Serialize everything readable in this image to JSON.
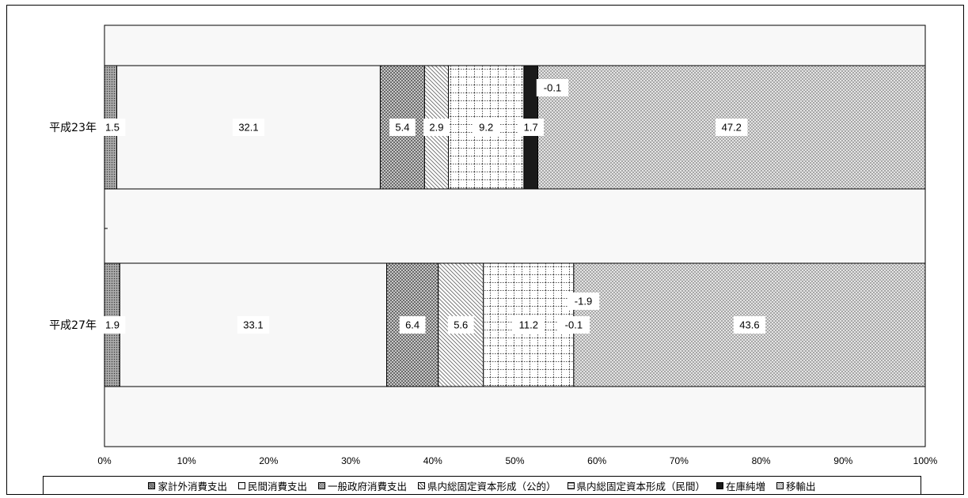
{
  "chart_data": {
    "type": "bar",
    "orientation": "horizontal",
    "stacking": "percent",
    "categories": [
      "平成23年",
      "平成27年"
    ],
    "series": [
      {
        "name": "家計外消費支出",
        "values": [
          1.5,
          1.9
        ],
        "labels": [
          "1.5",
          "1.9"
        ],
        "pattern": "dense-dots-gray"
      },
      {
        "name": "民間消費支出",
        "values": [
          32.1,
          33.1
        ],
        "labels": [
          "32.1",
          "33.1"
        ],
        "pattern": "light-plain"
      },
      {
        "name": "一般政府消費支出",
        "values": [
          5.4,
          6.4
        ],
        "labels": [
          "5.4",
          "6.4"
        ],
        "pattern": "checker-gray"
      },
      {
        "name": "県内総固定資本形成（公的）",
        "values": [
          2.9,
          5.6
        ],
        "labels": [
          "2.9",
          "5.6"
        ],
        "pattern": "diagonal-hatch"
      },
      {
        "name": "県内総固定資本形成（民間）",
        "values": [
          9.2,
          11.2
        ],
        "labels": [
          "9.2",
          "11.2"
        ],
        "pattern": "dotted-grid"
      },
      {
        "name": "在庫純増",
        "values": [
          1.7,
          -0.1
        ],
        "labels": [
          "1.7",
          "-0.1"
        ],
        "pattern": "solid-black"
      },
      {
        "name": "移輸出",
        "values": [
          47.2,
          43.6
        ],
        "labels": [
          "47.2",
          "43.6"
        ],
        "pattern": "checker-light"
      }
    ],
    "outside_labels": [
      {
        "category": "平成23年",
        "text": "-0.1"
      },
      {
        "category": "平成27年",
        "text": "-1.9"
      }
    ],
    "x_ticks": [
      "0%",
      "10%",
      "20%",
      "30%",
      "40%",
      "50%",
      "60%",
      "70%",
      "80%",
      "90%",
      "100%"
    ],
    "xlim": [
      0,
      100
    ],
    "grid": false,
    "legend_position": "bottom"
  }
}
